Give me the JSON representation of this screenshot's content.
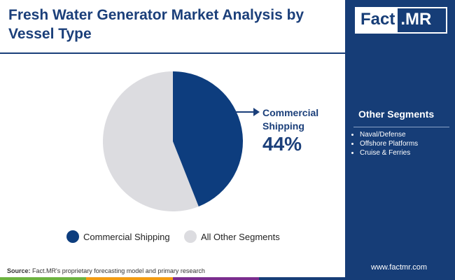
{
  "title": "Fresh Water Generator Market Analysis by Vessel Type",
  "logo_left": "Fact",
  "logo_right": ".MR",
  "chart_data": {
    "type": "pie",
    "categories": [
      "Commercial Shipping",
      "All Other Segments"
    ],
    "values": [
      44,
      56
    ],
    "value_labels": [
      "44%",
      null
    ],
    "colors": [
      "#0d3d7e",
      "#dcdce0"
    ]
  },
  "other_segments": {
    "title": "Other Segments",
    "items": [
      "Naval/Defense",
      "Offshore Platforms",
      "Cruise & Ferries"
    ]
  },
  "source_label": "Source:",
  "source": "Fact.MR's proprietary forecasting model and primary research",
  "url": "www.factmr.com"
}
